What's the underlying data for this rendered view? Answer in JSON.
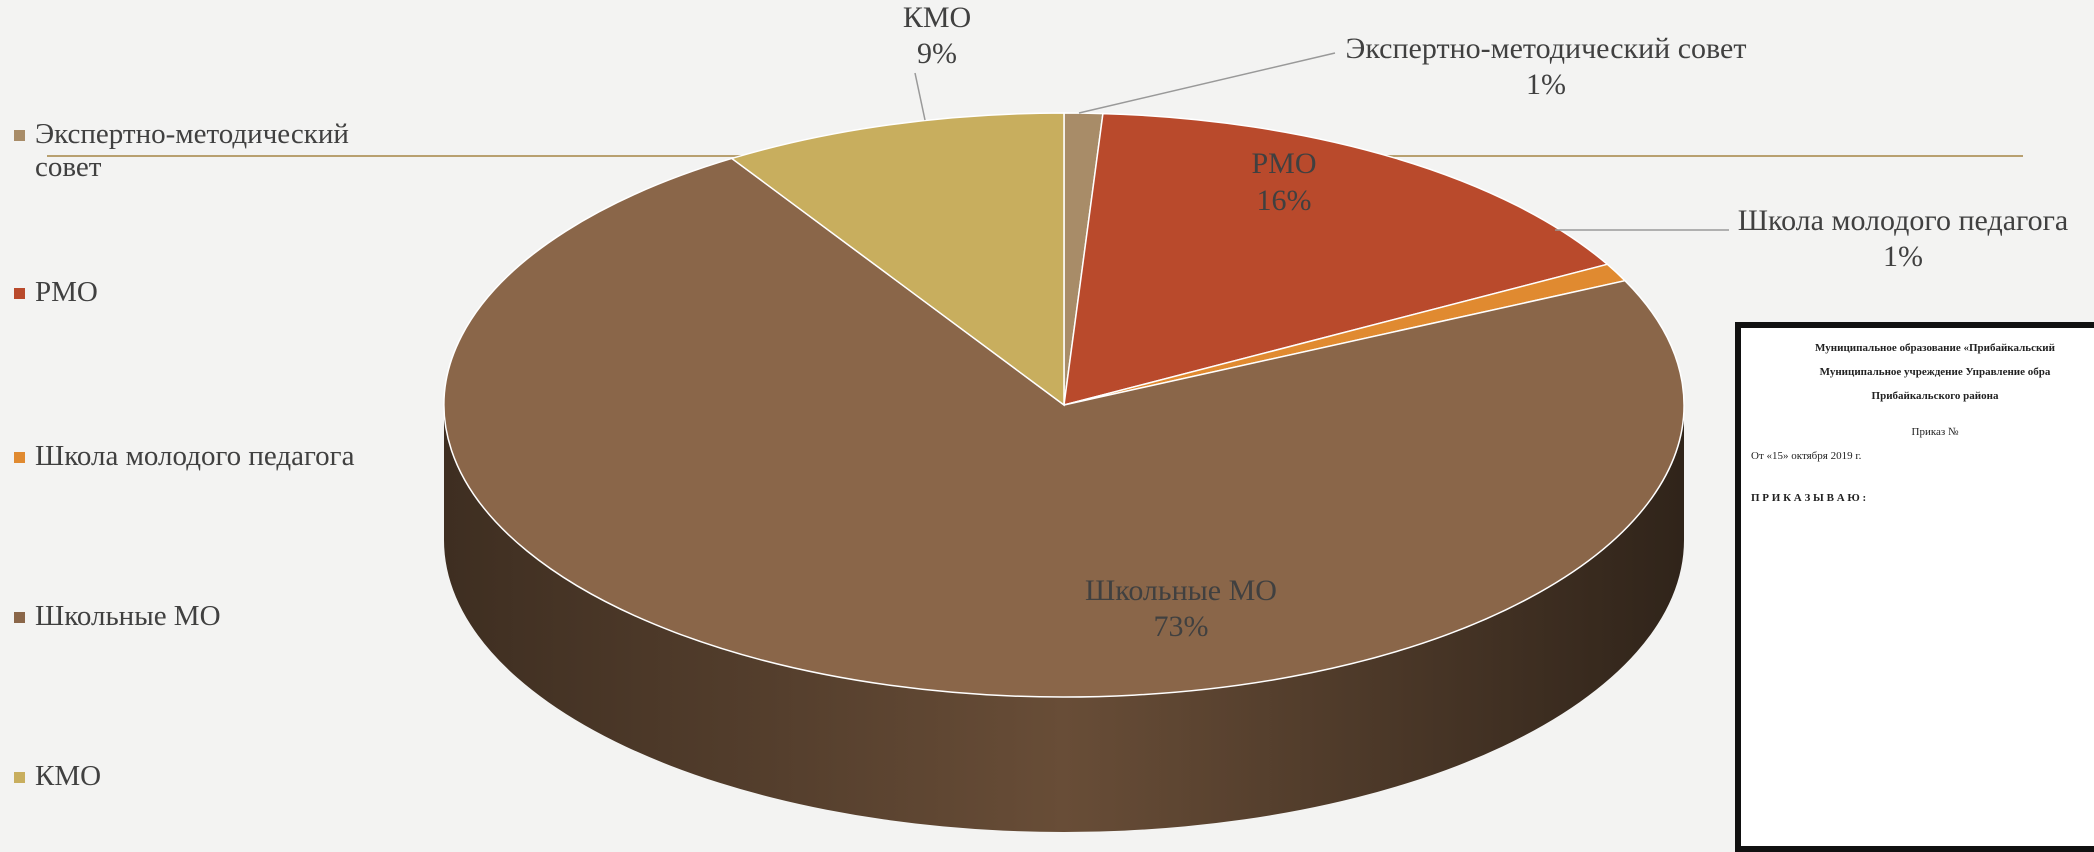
{
  "chart_data": {
    "type": "pie",
    "categories": [
      "Экспертно-методический совет",
      "РМО",
      "Школа молодого педагога",
      "Школьные МО",
      "КМО"
    ],
    "values": [
      1,
      16,
      1,
      73,
      9
    ],
    "value_labels": [
      "1%",
      "16%",
      "1%",
      "73%",
      "9%"
    ],
    "colors": [
      "#a88c68",
      "#b94a2c",
      "#e08a30",
      "#8a6649",
      "#c8ae5e"
    ],
    "legend": "left"
  },
  "document": {
    "lines": [
      "Муниципальное образование «Прибайкальский",
      "Муниципальное учреждение Управление обра",
      "Прибайкальского района",
      "Приказ №",
      "От «15» октября 2019 г.",
      "П Р И К А З Ы В А Ю :"
    ]
  }
}
